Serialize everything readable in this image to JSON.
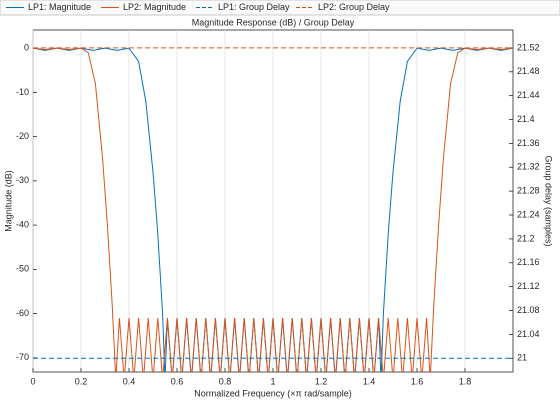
{
  "chart_data": {
    "type": "line",
    "title": "Magnitude Response (dB) / Group Delay",
    "xlabel": "Normalized Frequency (×π rad/sample)",
    "ylabel": "Magnitude (dB)",
    "y2label": "Group delay (samples)",
    "xlim": [
      0,
      2
    ],
    "ylim": [
      -73.2,
      4.1
    ],
    "y2lim": [
      20.977,
      21.55
    ],
    "xticks": [
      0,
      0.2,
      0.4,
      0.6,
      0.8,
      1,
      1.2,
      1.4,
      1.6,
      1.8
    ],
    "yticks": [
      0,
      -10,
      -20,
      -30,
      -40,
      -50,
      -60,
      -70
    ],
    "y2ticks": [
      21,
      21.04,
      21.08,
      21.12,
      21.16,
      21.2,
      21.24,
      21.28,
      21.32,
      21.36,
      21.4,
      21.44,
      21.48,
      21.52
    ],
    "grid": "x",
    "legend": "top",
    "series": [
      {
        "name": "LP1: Magnitude",
        "color": "#0072bd",
        "linestyle": "solid",
        "x": [
          0,
          0.05,
          0.1,
          0.15,
          0.2,
          0.25,
          0.3,
          0.35,
          0.4,
          0.44,
          0.47,
          0.5,
          0.52,
          0.54,
          0.55,
          0.56,
          0.58,
          0.6,
          0.62,
          0.64,
          0.66,
          0.68,
          0.7,
          0.72,
          0.74,
          0.76,
          0.78,
          0.8,
          0.82,
          0.84,
          0.86,
          0.88,
          0.9,
          0.92,
          0.94,
          0.96,
          0.98,
          1,
          1.02,
          1.04,
          1.06,
          1.08,
          1.1,
          1.12,
          1.14,
          1.16,
          1.18,
          1.2,
          1.22,
          1.24,
          1.26,
          1.28,
          1.3,
          1.32,
          1.34,
          1.36,
          1.38,
          1.4,
          1.42,
          1.44,
          1.45,
          1.46,
          1.48,
          1.5,
          1.53,
          1.56,
          1.6,
          1.65,
          1.7,
          1.75,
          1.8,
          1.85,
          1.9,
          1.95,
          2
        ],
        "values": [
          0,
          -0.5,
          0,
          -0.5,
          0,
          -0.5,
          0,
          -0.5,
          0,
          -3,
          -12,
          -28,
          -42,
          -60,
          -75,
          -61,
          -75,
          -61,
          -75,
          -61,
          -75,
          -61,
          -75,
          -61,
          -75,
          -61,
          -75,
          -61,
          -75,
          -61,
          -75,
          -61,
          -75,
          -61,
          -75,
          -61,
          -75,
          -61,
          -75,
          -61,
          -75,
          -61,
          -75,
          -61,
          -75,
          -61,
          -75,
          -61,
          -75,
          -61,
          -75,
          -61,
          -75,
          -61,
          -75,
          -61,
          -75,
          -61,
          -75,
          -61,
          -75,
          -60,
          -42,
          -28,
          -12,
          -3,
          0,
          -0.5,
          0,
          -0.5,
          0,
          -0.5,
          0,
          -0.5,
          0
        ]
      },
      {
        "name": "LP2: Magnitude",
        "color": "#d95319",
        "linestyle": "solid",
        "x": [
          0,
          0.05,
          0.1,
          0.15,
          0.2,
          0.23,
          0.26,
          0.29,
          0.31,
          0.33,
          0.345,
          0.36,
          0.38,
          0.4,
          0.42,
          0.44,
          0.46,
          0.48,
          0.5,
          0.52,
          0.54,
          0.56,
          0.58,
          0.6,
          0.62,
          0.64,
          0.66,
          0.68,
          0.7,
          0.72,
          0.74,
          0.76,
          0.78,
          0.8,
          0.82,
          0.84,
          0.86,
          0.88,
          0.9,
          0.92,
          0.94,
          0.96,
          0.98,
          1,
          1.02,
          1.04,
          1.06,
          1.08,
          1.1,
          1.12,
          1.14,
          1.16,
          1.18,
          1.2,
          1.22,
          1.24,
          1.26,
          1.28,
          1.3,
          1.32,
          1.34,
          1.36,
          1.38,
          1.4,
          1.42,
          1.44,
          1.46,
          1.48,
          1.5,
          1.52,
          1.54,
          1.56,
          1.58,
          1.6,
          1.62,
          1.64,
          1.655,
          1.67,
          1.69,
          1.71,
          1.74,
          1.77,
          1.8,
          1.85,
          1.9,
          1.95,
          2
        ],
        "values": [
          0,
          -0.3,
          0,
          -0.3,
          0,
          -1,
          -8,
          -25,
          -40,
          -58,
          -75,
          -61,
          -75,
          -61,
          -75,
          -61,
          -75,
          -61,
          -75,
          -61,
          -75,
          -61,
          -75,
          -61,
          -75,
          -61,
          -75,
          -61,
          -75,
          -61,
          -75,
          -61,
          -75,
          -61,
          -75,
          -61,
          -75,
          -61,
          -75,
          -61,
          -75,
          -61,
          -75,
          -61,
          -75,
          -61,
          -75,
          -61,
          -75,
          -61,
          -75,
          -61,
          -75,
          -61,
          -75,
          -61,
          -75,
          -61,
          -75,
          -61,
          -75,
          -61,
          -75,
          -61,
          -75,
          -61,
          -75,
          -61,
          -75,
          -61,
          -75,
          -61,
          -75,
          -61,
          -75,
          -61,
          -75,
          -58,
          -40,
          -25,
          -8,
          -1,
          0,
          -0.3,
          0,
          -0.3,
          0
        ]
      },
      {
        "name": "LP1: Group Delay",
        "color": "#0072bd",
        "linestyle": "dashed",
        "axis": "y2",
        "x": [
          0,
          2
        ],
        "values": [
          21,
          21
        ]
      },
      {
        "name": "LP2: Group Delay",
        "color": "#d95319",
        "linestyle": "dashed",
        "axis": "y2",
        "x": [
          0,
          2
        ],
        "values": [
          21.52,
          21.52
        ]
      }
    ]
  }
}
